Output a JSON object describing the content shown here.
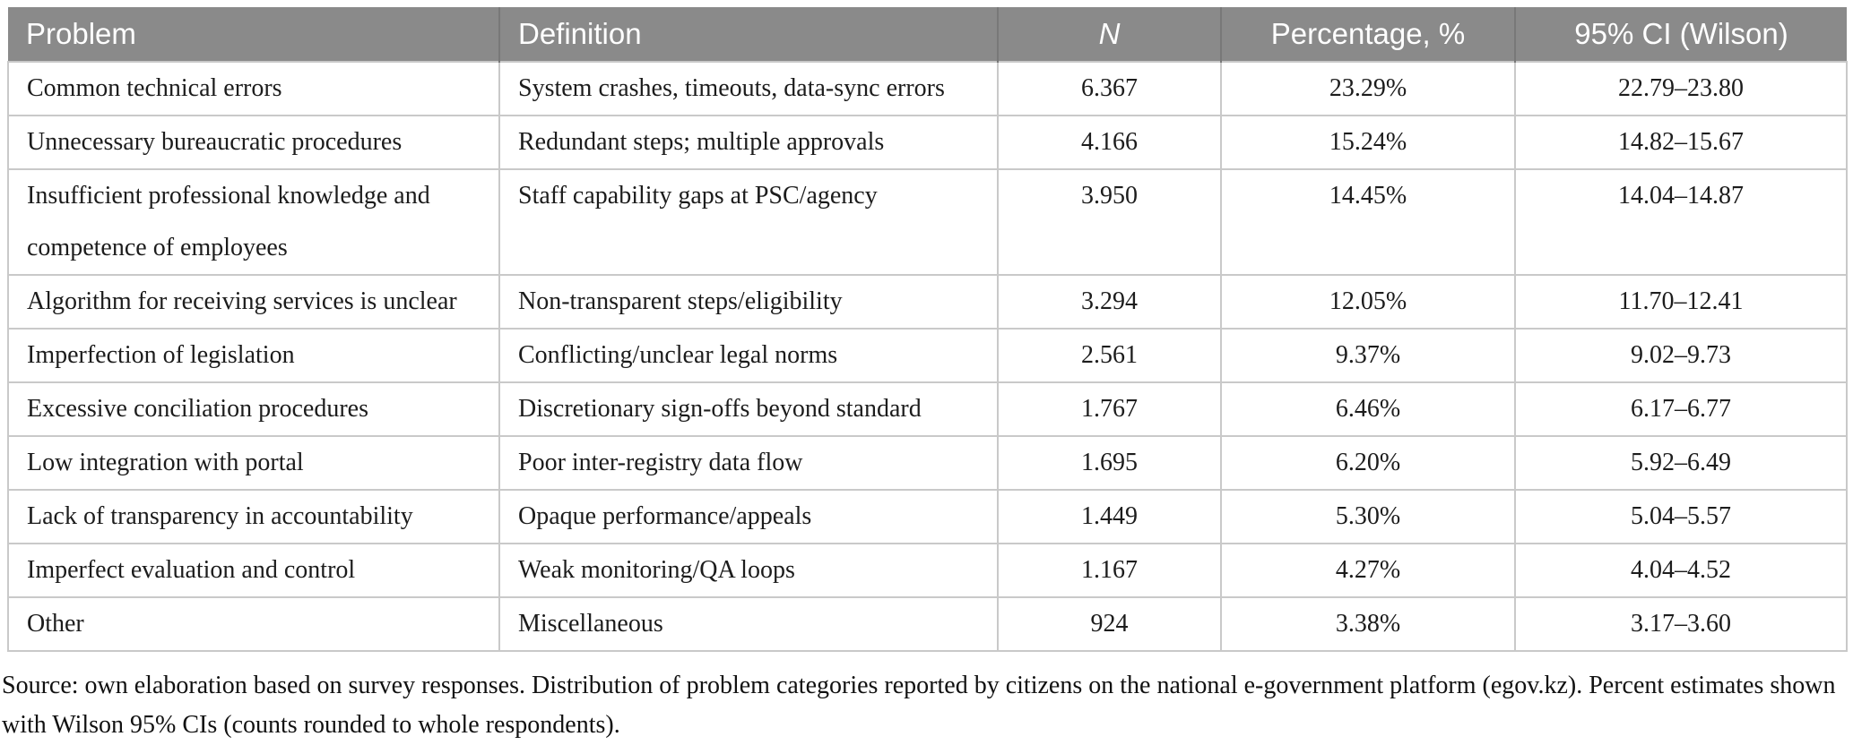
{
  "table": {
    "columns": [
      {
        "key": "problem",
        "label": "Problem"
      },
      {
        "key": "definition",
        "label": "Definition"
      },
      {
        "key": "n",
        "label": "N"
      },
      {
        "key": "percentage",
        "label": "Percentage, %"
      },
      {
        "key": "ci",
        "label": "95% CI (Wilson)"
      }
    ],
    "rows": [
      {
        "problem": "Common technical errors",
        "definition": "System crashes, timeouts, data-sync errors",
        "n": "6.367",
        "percentage": "23.29%",
        "ci": "22.79–23.80"
      },
      {
        "problem": "Unnecessary bureaucratic procedures",
        "definition": "Redundant steps; multiple approvals",
        "n": "4.166",
        "percentage": "15.24%",
        "ci": "14.82–15.67"
      },
      {
        "problem": "Insufficient professional knowledge and competence of employees",
        "definition": "Staff capability gaps at PSC/agency",
        "n": "3.950",
        "percentage": "14.45%",
        "ci": "14.04–14.87"
      },
      {
        "problem": "Algorithm for receiving services is unclear",
        "definition": "Non-transparent steps/eligibility",
        "n": "3.294",
        "percentage": "12.05%",
        "ci": "11.70–12.41"
      },
      {
        "problem": "Imperfection of legislation",
        "definition": "Conflicting/unclear legal norms",
        "n": "2.561",
        "percentage": "9.37%",
        "ci": "9.02–9.73"
      },
      {
        "problem": "Excessive conciliation procedures",
        "definition": "Discretionary sign-offs beyond standard",
        "n": "1.767",
        "percentage": "6.46%",
        "ci": "6.17–6.77"
      },
      {
        "problem": "Low integration with portal",
        "definition": "Poor inter-registry data flow",
        "n": "1.695",
        "percentage": "6.20%",
        "ci": "5.92–6.49"
      },
      {
        "problem": "Lack of transparency in accountability",
        "definition": "Opaque performance/appeals",
        "n": "1.449",
        "percentage": "5.30%",
        "ci": "5.04–5.57"
      },
      {
        "problem": "Imperfect evaluation and control",
        "definition": "Weak monitoring/QA loops",
        "n": "1.167",
        "percentage": "4.27%",
        "ci": "4.04–4.52"
      },
      {
        "problem": "Other",
        "definition": "Miscellaneous",
        "n": "924",
        "percentage": "3.38%",
        "ci": "3.17–3.60"
      }
    ]
  },
  "footnote": "Source: own elaboration based on survey responses. Distribution of problem categories reported by citizens on the national e-government platform (egov.kz). Percent estimates shown with Wilson 95% CIs (counts rounded to whole respondents).",
  "colors": {
    "header_bg": "#8a8a8a",
    "header_text": "#ffffff",
    "header_divider": "#787878",
    "body_border": "#c9c9c9",
    "body_text": "#1c1c1c"
  },
  "chart_data": {
    "type": "table",
    "title": "",
    "columns": [
      "Problem",
      "Definition",
      "N",
      "Percentage, %",
      "95% CI (Wilson)"
    ],
    "rows": [
      [
        "Common technical errors",
        "System crashes, timeouts, data-sync errors",
        "6.367",
        "23.29%",
        "22.79–23.80"
      ],
      [
        "Unnecessary bureaucratic procedures",
        "Redundant steps; multiple approvals",
        "4.166",
        "15.24%",
        "14.82–15.67"
      ],
      [
        "Insufficient professional knowledge and competence of employees",
        "Staff capability gaps at PSC/agency",
        "3.950",
        "14.45%",
        "14.04–14.87"
      ],
      [
        "Algorithm for receiving services is unclear",
        "Non-transparent steps/eligibility",
        "3.294",
        "12.05%",
        "11.70–12.41"
      ],
      [
        "Imperfection of legislation",
        "Conflicting/unclear legal norms",
        "2.561",
        "9.37%",
        "9.02–9.73"
      ],
      [
        "Excessive conciliation procedures",
        "Discretionary sign-offs beyond standard",
        "1.767",
        "6.46%",
        "6.17–6.77"
      ],
      [
        "Low integration with portal",
        "Poor inter-registry data flow",
        "1.695",
        "6.20%",
        "5.92–6.49"
      ],
      [
        "Lack of transparency in accountability",
        "Opaque performance/appeals",
        "1.449",
        "5.30%",
        "5.04–5.57"
      ],
      [
        "Imperfect evaluation and control",
        "Weak monitoring/QA loops",
        "1.167",
        "4.27%",
        "4.04–4.52"
      ],
      [
        "Other",
        "Miscellaneous",
        "924",
        "3.38%",
        "3.17–3.60"
      ]
    ]
  }
}
